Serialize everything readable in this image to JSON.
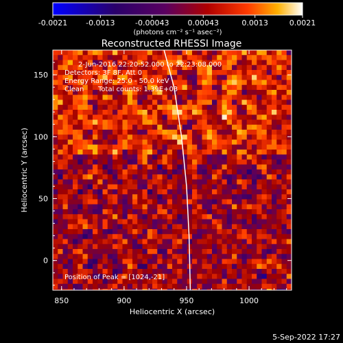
{
  "colorbar": {
    "ticks": [
      "-0.0021",
      "-0.0013",
      "-0.00043",
      "0.00043",
      "0.0013",
      "0.0021"
    ],
    "unit": "(photons cm⁻² s⁻¹ asec⁻²)",
    "range": [
      -0.0021,
      0.0021
    ],
    "colors": [
      "#0000ff",
      "#2a006a",
      "#5a0060",
      "#a00000",
      "#ff3b00",
      "#ffb000",
      "#ffffff"
    ]
  },
  "chart_data": {
    "type": "heatmap",
    "title": "Reconstructed RHESSI Image",
    "xlabel": "Heliocentric X (arcsec)",
    "ylabel": "Heliocentric Y (arcsec)",
    "xlim": [
      843,
      1034
    ],
    "ylim": [
      -24,
      170
    ],
    "xticks": [
      "850",
      "900",
      "950",
      "1000"
    ],
    "yticks": [
      "0",
      "50",
      "100",
      "150"
    ],
    "limb_curve": [
      [
        932,
        170
      ],
      [
        940,
        140
      ],
      [
        946,
        100
      ],
      [
        950,
        60
      ],
      [
        952,
        20
      ],
      [
        953,
        -24
      ]
    ],
    "annotations": {
      "time": "2-Jun-2016 22:20:52.000 to 22:23:08.000",
      "detectors": "Detectors: 3F 8F, Att 0",
      "energy": "Energy Range: 25.0 - 50.0 keV",
      "method": "Clean",
      "counts": "Total counts: 1.39E+03",
      "peak": "Position of Peak = [1024,-21]"
    }
  },
  "footer": {
    "date": "5-Sep-2022 17:27"
  }
}
